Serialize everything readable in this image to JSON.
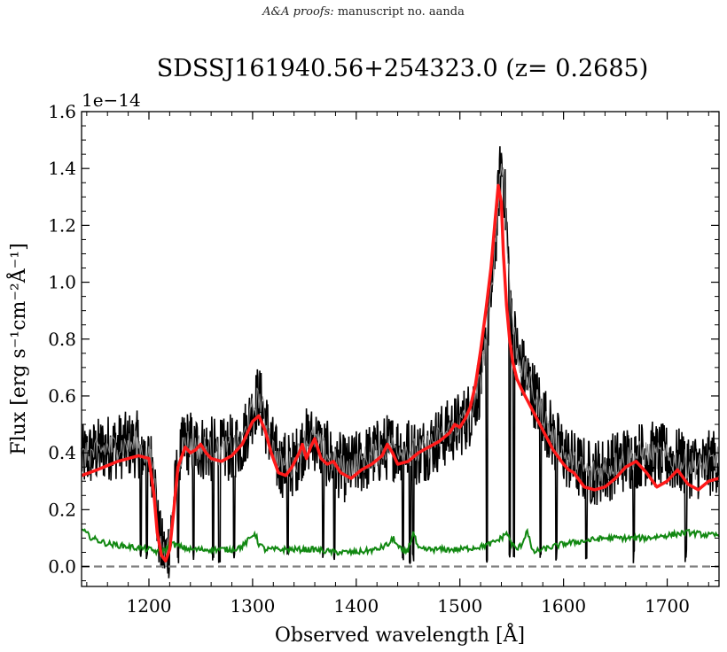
{
  "header": {
    "journal": "A&A proofs:",
    "manuscript": "manuscript no. aanda"
  },
  "chart_data": {
    "type": "line",
    "title": "SDSSJ161940.56+254323.0 (z= 0.2685)",
    "xlabel": "Observed wavelength [Å]",
    "ylabel": "Flux [erg s⁻¹cm⁻²Å⁻¹]",
    "y_offset_label": "1e−14",
    "xlim": [
      1135,
      1750
    ],
    "ylim": [
      -0.07,
      1.6
    ],
    "x_ticks": [
      1200,
      1300,
      1400,
      1500,
      1600,
      1700
    ],
    "y_ticks": [
      0.0,
      0.2,
      0.4,
      0.6,
      0.8,
      1.0,
      1.2,
      1.4,
      1.6
    ],
    "y_tick_labels": [
      "0.0",
      "0.2",
      "0.4",
      "0.6",
      "0.8",
      "1.0",
      "1.2",
      "1.4",
      "1.6"
    ],
    "grid": false,
    "zero_line": 0.0,
    "colors": {
      "spectrum": "#000000",
      "model": "#ff1a1a",
      "error": "#118811",
      "zero": "#808080"
    },
    "series": [
      {
        "role": "model",
        "x": [
          1135,
          1150,
          1170,
          1190,
          1200,
          1205,
          1208,
          1212,
          1216,
          1220,
          1224,
          1228,
          1235,
          1240,
          1245,
          1250,
          1255,
          1260,
          1270,
          1280,
          1290,
          1300,
          1306,
          1312,
          1318,
          1325,
          1332,
          1338,
          1345,
          1348,
          1352,
          1356,
          1360,
          1366,
          1372,
          1378,
          1385,
          1395,
          1405,
          1415,
          1425,
          1430,
          1435,
          1440,
          1450,
          1460,
          1470,
          1480,
          1490,
          1495,
          1500,
          1505,
          1510,
          1515,
          1520,
          1525,
          1530,
          1534,
          1537,
          1540,
          1542,
          1545,
          1548,
          1551,
          1555,
          1560,
          1570,
          1580,
          1590,
          1600,
          1605,
          1610,
          1620,
          1630,
          1640,
          1650,
          1660,
          1670,
          1680,
          1690,
          1700,
          1710,
          1720,
          1730,
          1740,
          1750
        ],
        "y": [
          0.32,
          0.34,
          0.37,
          0.39,
          0.38,
          0.25,
          0.12,
          0.04,
          0.02,
          0.06,
          0.2,
          0.35,
          0.42,
          0.4,
          0.41,
          0.43,
          0.4,
          0.38,
          0.37,
          0.39,
          0.43,
          0.51,
          0.53,
          0.48,
          0.4,
          0.33,
          0.32,
          0.35,
          0.4,
          0.43,
          0.38,
          0.42,
          0.45,
          0.38,
          0.36,
          0.37,
          0.33,
          0.31,
          0.34,
          0.36,
          0.39,
          0.43,
          0.4,
          0.36,
          0.37,
          0.4,
          0.42,
          0.44,
          0.47,
          0.5,
          0.49,
          0.52,
          0.56,
          0.64,
          0.76,
          0.9,
          1.05,
          1.22,
          1.34,
          1.28,
          1.1,
          0.92,
          0.8,
          0.72,
          0.66,
          0.62,
          0.55,
          0.48,
          0.41,
          0.36,
          0.34,
          0.33,
          0.28,
          0.27,
          0.28,
          0.31,
          0.35,
          0.37,
          0.33,
          0.28,
          0.3,
          0.34,
          0.29,
          0.27,
          0.3,
          0.31
        ]
      },
      {
        "role": "error",
        "x": [
          1135,
          1145,
          1160,
          1180,
          1200,
          1210,
          1216,
          1222,
          1230,
          1240,
          1250,
          1260,
          1270,
          1280,
          1290,
          1298,
          1302,
          1306,
          1312,
          1320,
          1340,
          1360,
          1380,
          1400,
          1420,
          1432,
          1436,
          1440,
          1446,
          1450,
          1455,
          1460,
          1480,
          1500,
          1520,
          1530,
          1540,
          1545,
          1550,
          1555,
          1560,
          1565,
          1570,
          1580,
          1600,
          1620,
          1640,
          1660,
          1680,
          1700,
          1720,
          1740,
          1750
        ],
        "y": [
          0.13,
          0.1,
          0.08,
          0.07,
          0.06,
          0.05,
          0.06,
          0.08,
          0.07,
          0.06,
          0.06,
          0.06,
          0.06,
          0.06,
          0.07,
          0.1,
          0.12,
          0.08,
          0.06,
          0.06,
          0.06,
          0.06,
          0.05,
          0.05,
          0.06,
          0.08,
          0.1,
          0.07,
          0.05,
          0.06,
          0.12,
          0.06,
          0.06,
          0.06,
          0.07,
          0.08,
          0.1,
          0.12,
          0.08,
          0.06,
          0.08,
          0.13,
          0.05,
          0.06,
          0.08,
          0.09,
          0.1,
          0.1,
          0.1,
          0.11,
          0.12,
          0.11,
          0.11
        ]
      },
      {
        "role": "spectrum",
        "x": [
          1135,
          1160,
          1190,
          1205,
          1208,
          1212,
          1216,
          1220,
          1224,
          1228,
          1235,
          1250,
          1270,
          1290,
          1300,
          1306,
          1312,
          1318,
          1325,
          1340,
          1350,
          1360,
          1375,
          1390,
          1410,
          1430,
          1440,
          1460,
          1480,
          1500,
          1510,
          1520,
          1525,
          1530,
          1535,
          1538,
          1540,
          1542,
          1545,
          1548,
          1552,
          1556,
          1560,
          1570,
          1580,
          1590,
          1600,
          1610,
          1625,
          1640,
          1660,
          1680,
          1700,
          1720,
          1735,
          1750
        ],
        "y": [
          0.38,
          0.42,
          0.43,
          0.35,
          0.15,
          0.06,
          0.04,
          0.08,
          0.22,
          0.36,
          0.44,
          0.42,
          0.4,
          0.44,
          0.55,
          0.6,
          0.52,
          0.43,
          0.36,
          0.36,
          0.44,
          0.45,
          0.38,
          0.34,
          0.38,
          0.42,
          0.42,
          0.4,
          0.45,
          0.5,
          0.54,
          0.65,
          0.78,
          0.95,
          1.18,
          1.35,
          1.42,
          1.38,
          1.2,
          0.98,
          0.82,
          0.74,
          0.7,
          0.62,
          0.54,
          0.45,
          0.4,
          0.36,
          0.33,
          0.34,
          0.38,
          0.4,
          0.38,
          0.36,
          0.35,
          0.38
        ]
      }
    ]
  }
}
